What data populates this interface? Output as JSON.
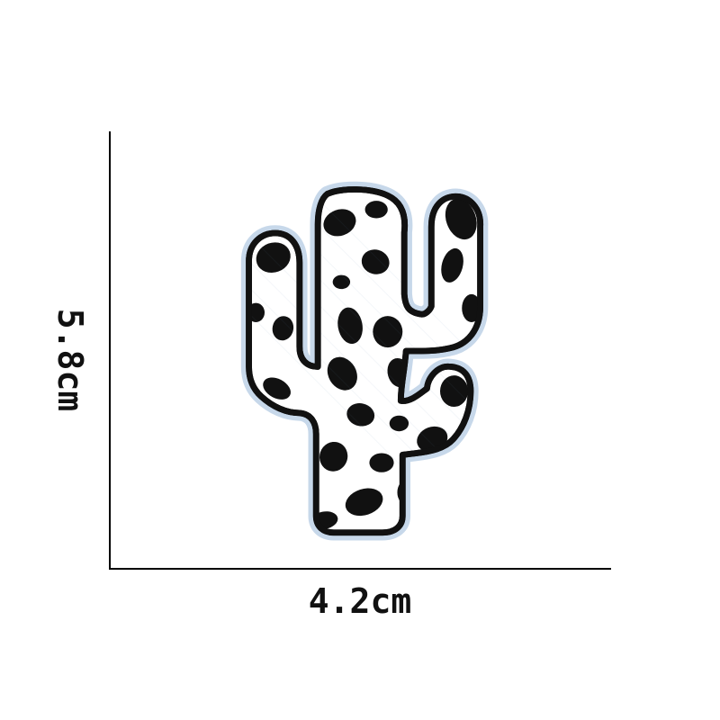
{
  "dimensions": {
    "height_label": "5.8cm",
    "width_label": "4.2cm"
  },
  "product": {
    "subject": "cactus-patch-icon",
    "pattern": "cow-print",
    "colors": {
      "outline": "#111111",
      "fill": "#ffffff",
      "edge": "#d9e6f2",
      "spots": "#111111"
    }
  }
}
